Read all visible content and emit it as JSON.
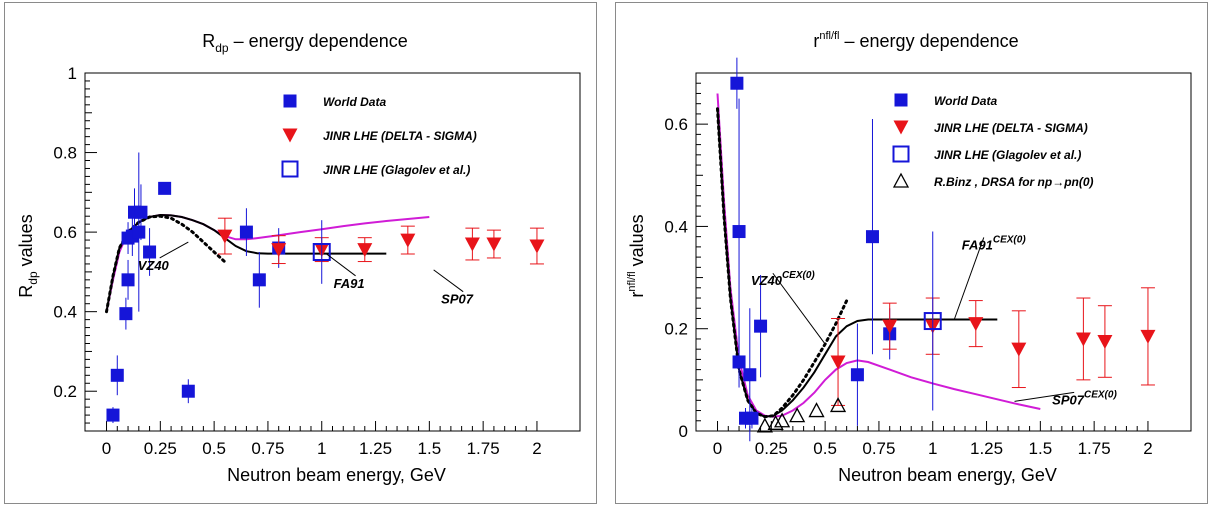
{
  "chart_data": [
    {
      "type": "scatter",
      "title_base": "R",
      "title_sub": "dp",
      "title_rest": " – energy dependence",
      "xlabel": "Neutron beam energy, GeV",
      "ylabel_base": "R",
      "ylabel_sub": "dp",
      "ylabel_rest": "  values",
      "xlim": [
        -0.1,
        2.2
      ],
      "ylim": [
        0.1,
        1.0
      ],
      "xticks": [
        "0",
        "0.25",
        "0.5",
        "0.75",
        "1",
        "1.25",
        "1.5",
        "1.75",
        "2"
      ],
      "xtick_values": [
        0,
        0.25,
        0.5,
        0.75,
        1,
        1.25,
        1.5,
        1.75,
        2
      ],
      "yticks": [
        "0.2",
        "0.4",
        "0.6",
        "0.8",
        "1"
      ],
      "ytick_values": [
        0.2,
        0.4,
        0.6,
        0.8,
        1.0
      ],
      "legend": [
        {
          "label": "World  Data",
          "marker": "square-filled",
          "color": "#1515d8"
        },
        {
          "label": "JINR  LHE  (DELTA - SIGMA)",
          "marker": "triangle-down",
          "color": "#e8141a"
        },
        {
          "label": "JINR  LHE  (Glagolev et al.)",
          "marker": "square-open",
          "color": "#1515d8"
        }
      ],
      "series": [
        {
          "name": "World  Data",
          "marker": "square-filled",
          "color": "#1515d8",
          "points": [
            {
              "x": 0.03,
              "y": 0.14,
              "err": 0.02
            },
            {
              "x": 0.05,
              "y": 0.24,
              "err": 0.05
            },
            {
              "x": 0.09,
              "y": 0.395,
              "err": 0.04
            },
            {
              "x": 0.1,
              "y": 0.48,
              "err": 0.05
            },
            {
              "x": 0.1,
              "y": 0.585,
              "err": 0.04
            },
            {
              "x": 0.12,
              "y": 0.59,
              "err": 0.05
            },
            {
              "x": 0.13,
              "y": 0.65,
              "err": 0.06
            },
            {
              "x": 0.15,
              "y": 0.6,
              "err": 0.2
            },
            {
              "x": 0.16,
              "y": 0.65,
              "err": 0.07
            },
            {
              "x": 0.2,
              "y": 0.55,
              "err": 0.06
            },
            {
              "x": 0.27,
              "y": 0.71,
              "err": 0.015
            },
            {
              "x": 0.38,
              "y": 0.2,
              "err": 0.03
            },
            {
              "x": 0.65,
              "y": 0.6,
              "err": 0.06
            },
            {
              "x": 0.71,
              "y": 0.48,
              "err": 0.07
            },
            {
              "x": 0.8,
              "y": 0.56,
              "err": 0.05
            }
          ]
        },
        {
          "name": "JINR  LHE  (DELTA - SIGMA)",
          "marker": "triangle-down",
          "color": "#e8141a",
          "points": [
            {
              "x": 0.55,
              "y": 0.59,
              "err": 0.045
            },
            {
              "x": 0.8,
              "y": 0.556,
              "err": 0.035
            },
            {
              "x": 1.0,
              "y": 0.556,
              "err": 0.03
            },
            {
              "x": 1.2,
              "y": 0.556,
              "err": 0.03
            },
            {
              "x": 1.4,
              "y": 0.58,
              "err": 0.035
            },
            {
              "x": 1.7,
              "y": 0.57,
              "err": 0.04
            },
            {
              "x": 1.8,
              "y": 0.57,
              "err": 0.035
            },
            {
              "x": 2.0,
              "y": 0.565,
              "err": 0.045
            }
          ]
        },
        {
          "name": "JINR  LHE  (Glagolev et al.)",
          "marker": "square-open",
          "color": "#1515d8",
          "points": [
            {
              "x": 1.0,
              "y": 0.55,
              "err": 0.08
            }
          ]
        }
      ],
      "curves": [
        {
          "label": "SP07",
          "color": "#d01cd6",
          "style": "solid",
          "x": [
            0.0,
            0.03,
            0.06,
            0.1,
            0.15,
            0.2,
            0.25,
            0.3,
            0.35,
            0.4,
            0.45,
            0.5,
            0.55,
            0.6,
            0.65,
            0.7,
            0.8,
            0.9,
            1.0,
            1.1,
            1.2,
            1.3,
            1.4,
            1.5
          ],
          "y": [
            0.4,
            0.48,
            0.55,
            0.6,
            0.625,
            0.638,
            0.643,
            0.642,
            0.638,
            0.63,
            0.62,
            0.605,
            0.59,
            0.582,
            0.582,
            0.585,
            0.592,
            0.6,
            0.607,
            0.615,
            0.622,
            0.628,
            0.633,
            0.638
          ]
        },
        {
          "label": "FA91",
          "color": "#000000",
          "style": "solid",
          "x": [
            0.0,
            0.03,
            0.06,
            0.1,
            0.15,
            0.2,
            0.25,
            0.3,
            0.35,
            0.4,
            0.45,
            0.5,
            0.55,
            0.6,
            0.65,
            0.7,
            0.75,
            0.8,
            0.9,
            1.0,
            1.1,
            1.2,
            1.3
          ],
          "y": [
            0.4,
            0.49,
            0.56,
            0.6,
            0.625,
            0.638,
            0.643,
            0.642,
            0.638,
            0.63,
            0.62,
            0.605,
            0.585,
            0.565,
            0.552,
            0.547,
            0.546,
            0.546,
            0.546,
            0.546,
            0.546,
            0.546,
            0.546
          ]
        },
        {
          "label": "VZ40",
          "color": "#000000",
          "style": "dotted",
          "x": [
            0.0,
            0.03,
            0.06,
            0.1,
            0.15,
            0.2,
            0.25,
            0.3,
            0.35,
            0.4,
            0.45,
            0.5,
            0.55
          ],
          "y": [
            0.4,
            0.49,
            0.56,
            0.6,
            0.625,
            0.638,
            0.64,
            0.635,
            0.62,
            0.6,
            0.575,
            0.55,
            0.525
          ]
        }
      ],
      "annotations": [
        {
          "text": "VZ40",
          "tx": 0.21,
          "ty": 0.505,
          "px": 0.38,
          "py": 0.575
        },
        {
          "text": "FA91",
          "tx": 1.12,
          "ty": 0.46,
          "px": 1.02,
          "py": 0.546
        },
        {
          "text": "SP07",
          "tx": 1.62,
          "ty": 0.42,
          "px": 1.52,
          "py": 0.505
        }
      ]
    },
    {
      "type": "scatter",
      "title_base": "r",
      "title_sup": "nfl/fl",
      "title_rest": "  – energy dependence",
      "xlabel": "Neutron beam energy, GeV",
      "ylabel_base": "r",
      "ylabel_sup": "nfl/fl",
      "ylabel_rest": "  values",
      "xlim": [
        -0.1,
        2.2
      ],
      "ylim": [
        0.0,
        0.7
      ],
      "xticks": [
        "0",
        "0.25",
        "0.5",
        "0.75",
        "1",
        "1.25",
        "1.5",
        "1.75",
        "2"
      ],
      "xtick_values": [
        0,
        0.25,
        0.5,
        0.75,
        1,
        1.25,
        1.5,
        1.75,
        2
      ],
      "yticks": [
        "0",
        "0.2",
        "0.4",
        "0.6"
      ],
      "ytick_values": [
        0.0,
        0.2,
        0.4,
        0.6
      ],
      "legend": [
        {
          "label": "World  Data",
          "marker": "square-filled",
          "color": "#1515d8"
        },
        {
          "label": "JINR  LHE  (DELTA - SIGMA)",
          "marker": "triangle-down",
          "color": "#e8141a"
        },
        {
          "label": "JINR  LHE  (Glagolev et al.)",
          "marker": "square-open",
          "color": "#1515d8"
        },
        {
          "label": "R.Binz ,  DRSA  for  np→pn(0)",
          "marker": "triangle-open",
          "color": "#000000"
        }
      ],
      "series": [
        {
          "name": "World  Data",
          "marker": "square-filled",
          "color": "#1515d8",
          "points": [
            {
              "x": 0.09,
              "y": 0.68,
              "err": 0.05
            },
            {
              "x": 0.1,
              "y": 0.39,
              "err": 0.26
            },
            {
              "x": 0.1,
              "y": 0.135,
              "err": 0.05
            },
            {
              "x": 0.13,
              "y": 0.025,
              "err": 0.02
            },
            {
              "x": 0.15,
              "y": 0.11,
              "err": 0.13
            },
            {
              "x": 0.16,
              "y": 0.025,
              "err": 0.02
            },
            {
              "x": 0.2,
              "y": 0.205,
              "err": 0.1
            },
            {
              "x": 0.65,
              "y": 0.11,
              "err": 0.1
            },
            {
              "x": 0.72,
              "y": 0.38,
              "err": 0.23
            },
            {
              "x": 0.8,
              "y": 0.19,
              "err": 0.05
            }
          ]
        },
        {
          "name": "JINR  LHE  (DELTA - SIGMA)",
          "marker": "triangle-down",
          "color": "#e8141a",
          "points": [
            {
              "x": 0.56,
              "y": 0.135,
              "err": 0.085
            },
            {
              "x": 0.8,
              "y": 0.205,
              "err": 0.045
            },
            {
              "x": 1.0,
              "y": 0.205,
              "err": 0.055
            },
            {
              "x": 1.2,
              "y": 0.21,
              "err": 0.045
            },
            {
              "x": 1.4,
              "y": 0.16,
              "err": 0.075
            },
            {
              "x": 1.7,
              "y": 0.18,
              "err": 0.08
            },
            {
              "x": 1.8,
              "y": 0.175,
              "err": 0.07
            },
            {
              "x": 2.0,
              "y": 0.185,
              "err": 0.095
            }
          ]
        },
        {
          "name": "JINR  LHE  (Glagolev et al.)",
          "marker": "square-open",
          "color": "#1515d8",
          "points": [
            {
              "x": 1.0,
              "y": 0.215,
              "err": 0.175
            }
          ]
        },
        {
          "name": "R.Binz ,  DRSA  for  np→pn(0)",
          "marker": "triangle-open",
          "color": "#000000",
          "points": [
            {
              "x": 0.22,
              "y": 0.01,
              "err": 0
            },
            {
              "x": 0.27,
              "y": 0.015,
              "err": 0
            },
            {
              "x": 0.3,
              "y": 0.02,
              "err": 0
            },
            {
              "x": 0.37,
              "y": 0.03,
              "err": 0
            },
            {
              "x": 0.46,
              "y": 0.04,
              "err": 0
            },
            {
              "x": 0.56,
              "y": 0.05,
              "err": 0
            }
          ]
        }
      ],
      "curves": [
        {
          "label": "SP07",
          "color": "#d01cd6",
          "style": "solid",
          "x": [
            0.0,
            0.03,
            0.06,
            0.1,
            0.14,
            0.18,
            0.22,
            0.26,
            0.3,
            0.35,
            0.4,
            0.45,
            0.5,
            0.55,
            0.6,
            0.65,
            0.7,
            0.8,
            0.9,
            1.0,
            1.1,
            1.2,
            1.3,
            1.4,
            1.5
          ],
          "y": [
            0.66,
            0.45,
            0.28,
            0.14,
            0.07,
            0.04,
            0.03,
            0.028,
            0.03,
            0.04,
            0.055,
            0.075,
            0.1,
            0.12,
            0.133,
            0.138,
            0.135,
            0.12,
            0.105,
            0.093,
            0.082,
            0.072,
            0.062,
            0.052,
            0.043
          ]
        },
        {
          "label": "FA91",
          "color": "#000000",
          "style": "solid",
          "x": [
            0.0,
            0.03,
            0.06,
            0.1,
            0.14,
            0.18,
            0.22,
            0.26,
            0.3,
            0.35,
            0.4,
            0.45,
            0.5,
            0.55,
            0.6,
            0.65,
            0.7,
            0.75,
            0.8,
            0.9,
            1.0,
            1.1,
            1.2,
            1.3
          ],
          "y": [
            0.63,
            0.42,
            0.26,
            0.12,
            0.06,
            0.035,
            0.028,
            0.03,
            0.04,
            0.06,
            0.085,
            0.115,
            0.15,
            0.185,
            0.205,
            0.215,
            0.218,
            0.218,
            0.218,
            0.218,
            0.218,
            0.218,
            0.218,
            0.218
          ]
        },
        {
          "label": "VZ40",
          "color": "#000000",
          "style": "dotted",
          "x": [
            0.0,
            0.03,
            0.06,
            0.1,
            0.14,
            0.18,
            0.22,
            0.26,
            0.3,
            0.35,
            0.4,
            0.45,
            0.5,
            0.55,
            0.6
          ],
          "y": [
            0.63,
            0.42,
            0.26,
            0.12,
            0.06,
            0.035,
            0.028,
            0.03,
            0.045,
            0.07,
            0.1,
            0.135,
            0.17,
            0.21,
            0.255
          ]
        }
      ],
      "annotations": [
        {
          "text": "VZ40",
          "sup": "CEX(0)",
          "tx": 0.22,
          "ty": 0.285,
          "px": 0.5,
          "py": 0.17
        },
        {
          "text": "FA91",
          "sup": "CEX(0)",
          "tx": 1.2,
          "ty": 0.355,
          "px": 1.1,
          "py": 0.218
        },
        {
          "text": "SP07",
          "sup": "CEX(0)",
          "tx": 1.62,
          "ty": 0.052,
          "px": 1.38,
          "py": 0.058
        }
      ]
    }
  ]
}
